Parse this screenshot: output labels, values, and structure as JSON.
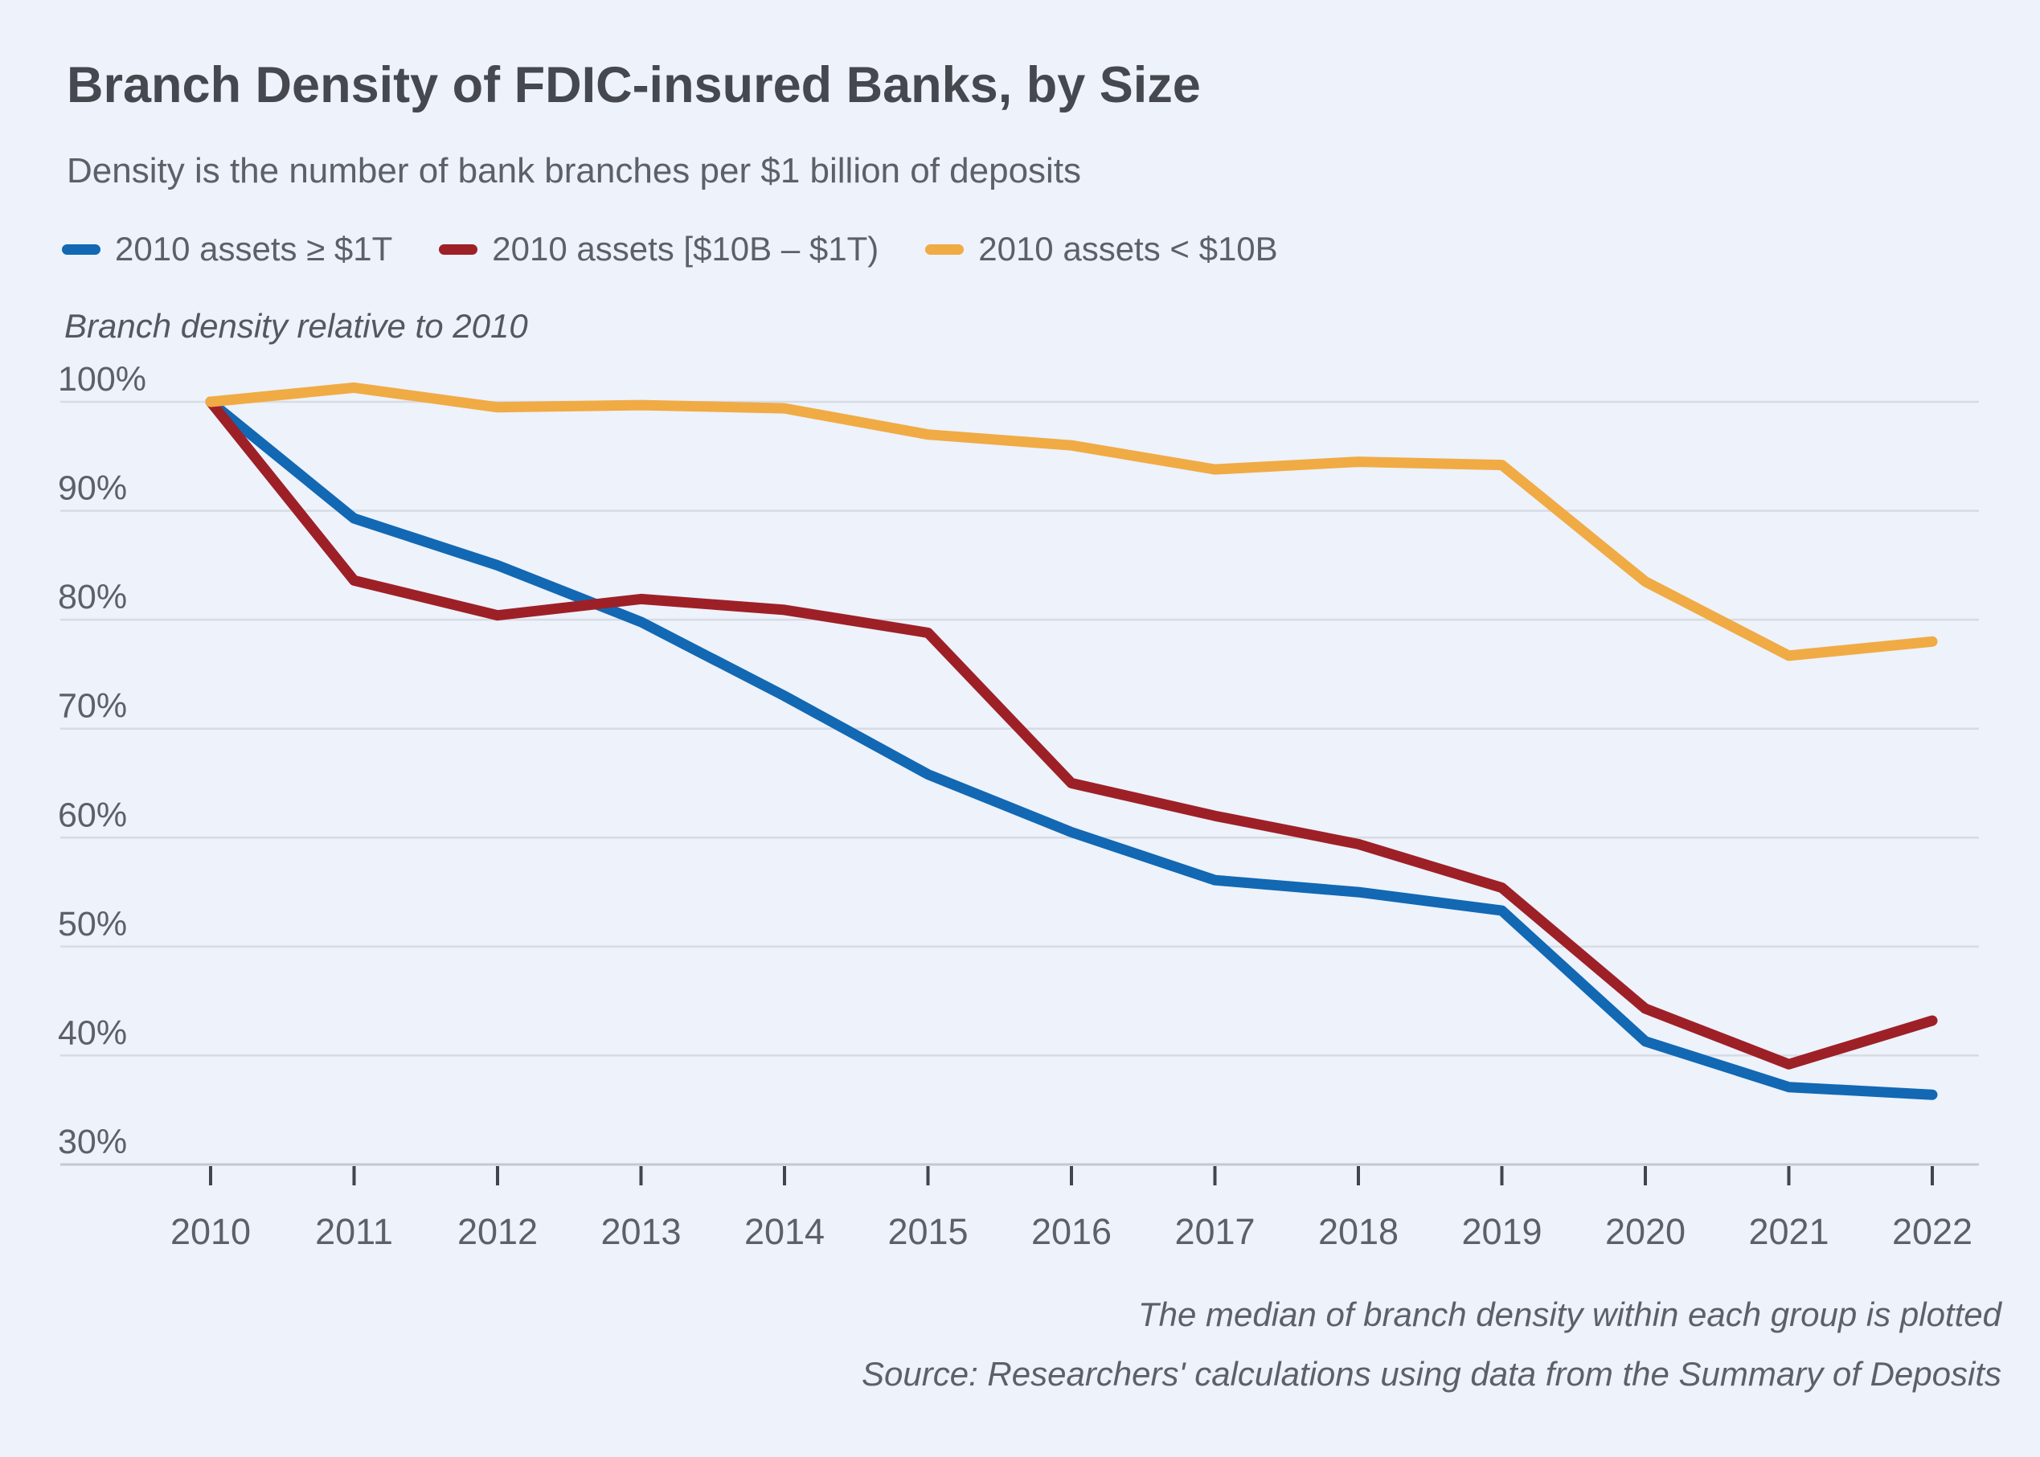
{
  "page": {
    "title": "Branch Density of FDIC-insured Banks, by Size",
    "subtitle": "Density is the number of bank branches per $1 billion of deposits"
  },
  "axis_title": "Branch density relative to 2010",
  "footer": {
    "note": "The median of branch density within each group is plotted",
    "source": "Source: Researchers' calculations using data from the Summary of Deposits"
  },
  "colors": {
    "background": "#edf2fb",
    "grid": "#d7dbe3",
    "axis_line": "#c3c8d1",
    "tick": "#42464c",
    "text_dark": "#45484e",
    "text_gray": "#5c6067",
    "series_blue": "#1268b3",
    "series_red": "#9e2027",
    "series_orange": "#f0ab45"
  },
  "chart_data": {
    "type": "line",
    "title": "Branch Density of FDIC-insured Banks, by Size",
    "subtitle": "Density is the number of bank branches per $1 billion of deposits",
    "xlabel": "",
    "ylabel": "Branch density relative to 2010",
    "categories": [
      2010,
      2011,
      2012,
      2013,
      2014,
      2015,
      2016,
      2017,
      2018,
      2019,
      2020,
      2021,
      2022
    ],
    "series": [
      {
        "name": "2010 assets ≥ $1T",
        "color": "#1268b3",
        "values": [
          100,
          89.3,
          85.0,
          79.8,
          73.0,
          65.8,
          60.5,
          56.1,
          55.0,
          53.3,
          41.3,
          37.1,
          36.4
        ]
      },
      {
        "name": "2010 assets [$10B – $1T)",
        "color": "#9e2027",
        "values": [
          100,
          83.6,
          80.4,
          81.9,
          80.9,
          78.8,
          65.0,
          62.0,
          59.4,
          55.4,
          44.3,
          39.2,
          43.2
        ]
      },
      {
        "name": "2010 assets < $10B",
        "color": "#f0ab45",
        "values": [
          100,
          101.3,
          99.5,
          99.7,
          99.4,
          97.0,
          96.0,
          93.8,
          94.5,
          94.2,
          83.5,
          76.7,
          78.0
        ]
      }
    ],
    "yticks": [
      100,
      90,
      80,
      70,
      60,
      50,
      40,
      30
    ],
    "ytick_labels": [
      "100%",
      "90%",
      "80%",
      "70%",
      "60%",
      "50%",
      "40%",
      "30%"
    ],
    "ylim": [
      30,
      103
    ],
    "grid": true,
    "legend_position": "top",
    "note": "The median of branch density within each group is plotted",
    "source": "Source: Researchers' calculations using data from the Summary of Deposits"
  }
}
